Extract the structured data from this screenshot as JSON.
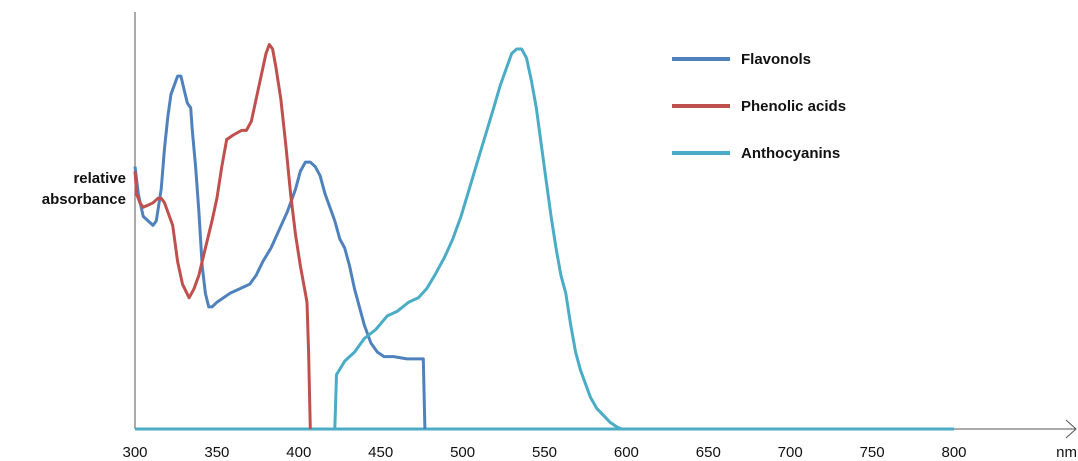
{
  "chart_data": {
    "type": "line",
    "xlabel": "nm",
    "ylabel": [
      "relative",
      "absorbance"
    ],
    "xlim": [
      300,
      800
    ],
    "xticks": [
      300,
      350,
      400,
      450,
      500,
      550,
      600,
      650,
      700,
      750,
      800
    ],
    "grid": false,
    "legend_position": "top-right",
    "series": [
      {
        "name": "Flavonols",
        "color": "#4f81bd",
        "points": [
          [
            300,
            0.58
          ],
          [
            302,
            0.52
          ],
          [
            305,
            0.47
          ],
          [
            308,
            0.46
          ],
          [
            311,
            0.45
          ],
          [
            313,
            0.46
          ],
          [
            316,
            0.53
          ],
          [
            318,
            0.62
          ],
          [
            320,
            0.69
          ],
          [
            322,
            0.74
          ],
          [
            324,
            0.76
          ],
          [
            326,
            0.78
          ],
          [
            328,
            0.78
          ],
          [
            330,
            0.75
          ],
          [
            332,
            0.72
          ],
          [
            334,
            0.71
          ],
          [
            335,
            0.66
          ],
          [
            337,
            0.58
          ],
          [
            339,
            0.48
          ],
          [
            341,
            0.36
          ],
          [
            343,
            0.3
          ],
          [
            345,
            0.27
          ],
          [
            347,
            0.27
          ],
          [
            350,
            0.28
          ],
          [
            354,
            0.29
          ],
          [
            358,
            0.3
          ],
          [
            364,
            0.31
          ],
          [
            370,
            0.32
          ],
          [
            374,
            0.34
          ],
          [
            378,
            0.37
          ],
          [
            383,
            0.4
          ],
          [
            388,
            0.44
          ],
          [
            393,
            0.48
          ],
          [
            398,
            0.53
          ],
          [
            401,
            0.57
          ],
          [
            404,
            0.59
          ],
          [
            407,
            0.59
          ],
          [
            410,
            0.58
          ],
          [
            413,
            0.56
          ],
          [
            416,
            0.52
          ],
          [
            419,
            0.49
          ],
          [
            422,
            0.46
          ],
          [
            425,
            0.42
          ],
          [
            428,
            0.4
          ],
          [
            431,
            0.36
          ],
          [
            434,
            0.31
          ],
          [
            437,
            0.27
          ],
          [
            440,
            0.23
          ],
          [
            444,
            0.19
          ],
          [
            448,
            0.17
          ],
          [
            452,
            0.16
          ],
          [
            458,
            0.16
          ],
          [
            466,
            0.155
          ],
          [
            476,
            0.155
          ],
          [
            477,
            0
          ]
        ]
      },
      {
        "name": "Phenolic acids",
        "color": "#c0504d",
        "points": [
          [
            300,
            0.57
          ],
          [
            301,
            0.52
          ],
          [
            303,
            0.5
          ],
          [
            305,
            0.49
          ],
          [
            308,
            0.495
          ],
          [
            311,
            0.5
          ],
          [
            314,
            0.51
          ],
          [
            316,
            0.51
          ],
          [
            318,
            0.5
          ],
          [
            320,
            0.48
          ],
          [
            323,
            0.45
          ],
          [
            326,
            0.37
          ],
          [
            329,
            0.32
          ],
          [
            333,
            0.29
          ],
          [
            336,
            0.31
          ],
          [
            339,
            0.34
          ],
          [
            343,
            0.4
          ],
          [
            347,
            0.46
          ],
          [
            350,
            0.51
          ],
          [
            353,
            0.58
          ],
          [
            356,
            0.64
          ],
          [
            360,
            0.65
          ],
          [
            365,
            0.66
          ],
          [
            368,
            0.66
          ],
          [
            371,
            0.68
          ],
          [
            374,
            0.73
          ],
          [
            377,
            0.78
          ],
          [
            380,
            0.83
          ],
          [
            382,
            0.85
          ],
          [
            384,
            0.84
          ],
          [
            386,
            0.8
          ],
          [
            389,
            0.73
          ],
          [
            392,
            0.63
          ],
          [
            395,
            0.52
          ],
          [
            398,
            0.43
          ],
          [
            401,
            0.36
          ],
          [
            404,
            0.3
          ],
          [
            405,
            0.28
          ],
          [
            406,
            0.17
          ],
          [
            407,
            0
          ]
        ]
      },
      {
        "name": "Anthocyanins",
        "color": "#4bacc6",
        "points": [
          [
            422,
            0
          ],
          [
            423,
            0.12
          ],
          [
            428,
            0.15
          ],
          [
            434,
            0.17
          ],
          [
            440,
            0.2
          ],
          [
            447,
            0.22
          ],
          [
            454,
            0.25
          ],
          [
            460,
            0.26
          ],
          [
            467,
            0.28
          ],
          [
            473,
            0.29
          ],
          [
            478,
            0.31
          ],
          [
            483,
            0.34
          ],
          [
            489,
            0.38
          ],
          [
            494,
            0.42
          ],
          [
            499,
            0.47
          ],
          [
            504,
            0.53
          ],
          [
            509,
            0.59
          ],
          [
            514,
            0.65
          ],
          [
            519,
            0.71
          ],
          [
            523,
            0.76
          ],
          [
            527,
            0.8
          ],
          [
            530,
            0.83
          ],
          [
            533,
            0.84
          ],
          [
            536,
            0.84
          ],
          [
            539,
            0.82
          ],
          [
            542,
            0.77
          ],
          [
            545,
            0.71
          ],
          [
            548,
            0.63
          ],
          [
            551,
            0.55
          ],
          [
            554,
            0.47
          ],
          [
            557,
            0.4
          ],
          [
            560,
            0.34
          ],
          [
            563,
            0.3
          ],
          [
            566,
            0.23
          ],
          [
            569,
            0.17
          ],
          [
            572,
            0.13
          ],
          [
            575,
            0.1
          ],
          [
            578,
            0.07
          ],
          [
            582,
            0.045
          ],
          [
            586,
            0.03
          ],
          [
            590,
            0.015
          ],
          [
            594,
            0.005
          ],
          [
            597,
            0
          ]
        ]
      }
    ],
    "baseline": {
      "color": "#4bacc6",
      "from": 300,
      "to": 800
    }
  }
}
